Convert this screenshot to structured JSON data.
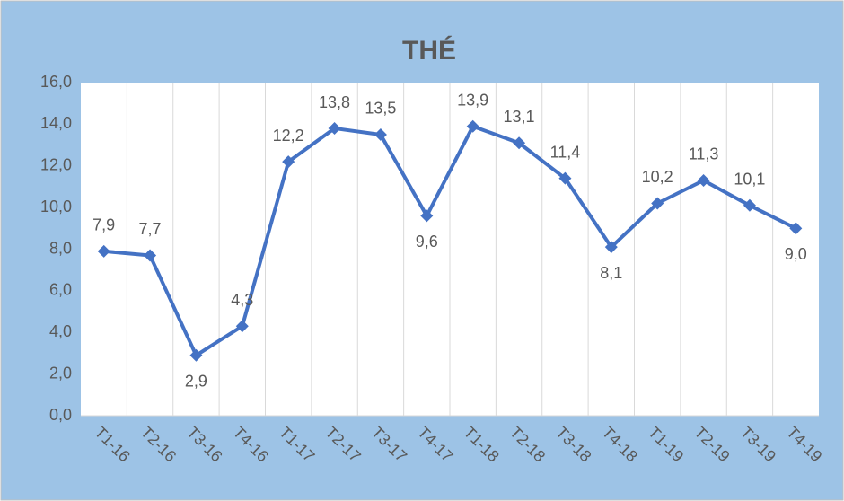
{
  "chart_data": {
    "type": "line",
    "title": "THÉ",
    "categories": [
      "T1-16",
      "T2-16",
      "T3-16",
      "T4-16",
      "T1-17",
      "T2-17",
      "T3-17",
      "T4-17",
      "T1-18",
      "T2-18",
      "T3-18",
      "T4-18",
      "T1-19",
      "T2-19",
      "T3-19",
      "T4-19"
    ],
    "series": [
      {
        "name": "THÉ",
        "color": "#4472c4",
        "values": [
          7.9,
          7.7,
          2.9,
          4.3,
          12.2,
          13.8,
          13.5,
          9.6,
          13.9,
          13.1,
          11.4,
          8.1,
          10.2,
          11.3,
          10.1,
          9.0
        ],
        "value_labels": [
          "7,9",
          "7,7",
          "2,9",
          "4,3",
          "12,2",
          "13,8",
          "13,5",
          "9,6",
          "13,9",
          "13,1",
          "11,4",
          "8,1",
          "10,2",
          "11,3",
          "10,1",
          "9,0"
        ]
      }
    ],
    "ylim": [
      0,
      16
    ],
    "yticks": [
      {
        "value": 0,
        "label": "0,0"
      },
      {
        "value": 2,
        "label": "2,0"
      },
      {
        "value": 4,
        "label": "4,0"
      },
      {
        "value": 6,
        "label": "6,0"
      },
      {
        "value": 8,
        "label": "8,0"
      },
      {
        "value": 10,
        "label": "10,0"
      },
      {
        "value": 12,
        "label": "12,0"
      },
      {
        "value": 14,
        "label": "14,0"
      },
      {
        "value": 16,
        "label": "16,0"
      }
    ],
    "grid": true
  }
}
